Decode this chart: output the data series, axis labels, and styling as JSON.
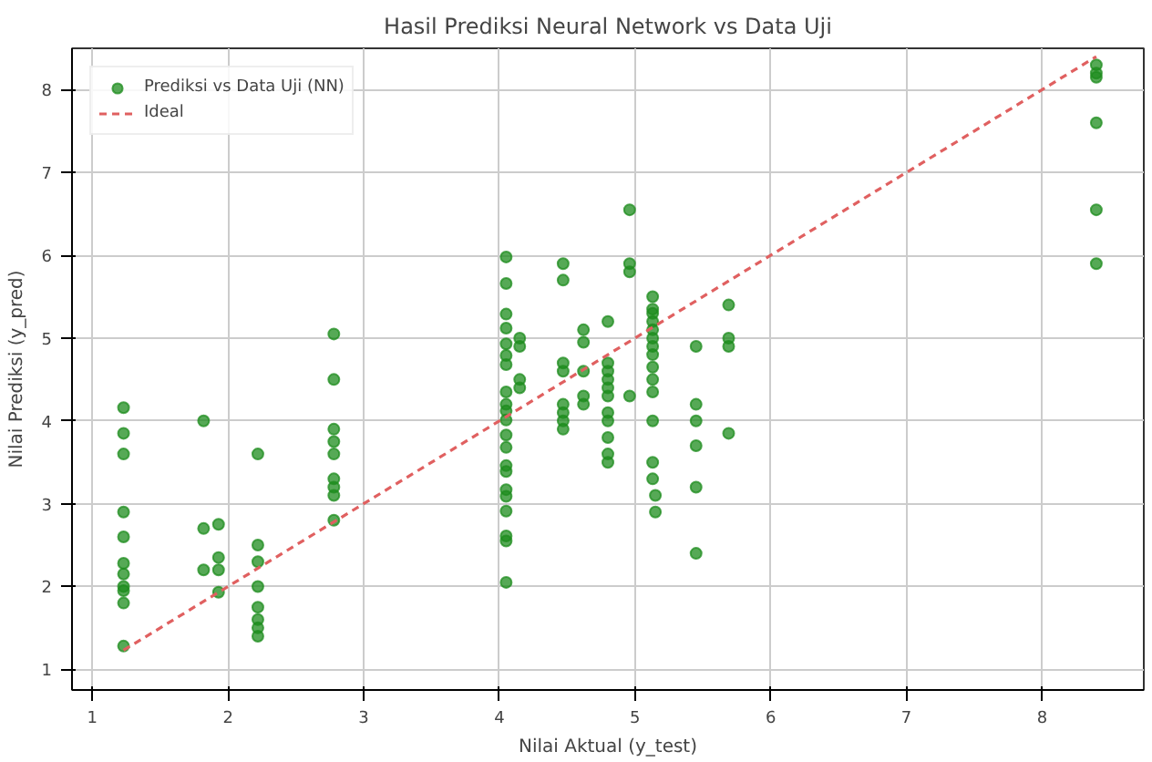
{
  "chart_data": {
    "type": "scatter",
    "title": "Hasil Prediksi Neural Network vs Data Uji",
    "xlabel": "Nilai Aktual (y_test)",
    "ylabel": "Nilai Prediksi (y_pred)",
    "xlim": [
      0.85,
      8.75
    ],
    "ylim": [
      0.75,
      8.5
    ],
    "xticks": [
      1,
      2,
      3,
      4,
      5,
      6,
      7,
      8
    ],
    "yticks": [
      1,
      2,
      3,
      4,
      5,
      6,
      7,
      8
    ],
    "grid": true,
    "legend": "top left",
    "series": [
      {
        "name": "Prediksi vs Data Uji (NN)",
        "color": "#1e8c1e",
        "marker": "circle",
        "x": [
          1.23,
          1.23,
          1.23,
          1.23,
          1.23,
          1.23,
          1.23,
          1.23,
          1.23,
          1.23,
          1.23,
          1.82,
          1.82,
          1.82,
          1.93,
          1.93,
          1.93,
          1.93,
          2.22,
          2.22,
          2.22,
          2.22,
          2.22,
          2.22,
          2.22,
          2.22,
          2.78,
          2.78,
          2.78,
          2.78,
          2.78,
          2.78,
          2.78,
          2.78,
          2.78,
          4.05,
          4.05,
          4.05,
          4.05,
          4.05,
          4.05,
          4.05,
          4.05,
          4.05,
          4.05,
          4.05,
          4.05,
          4.05,
          4.05,
          4.05,
          4.05,
          4.05,
          4.05,
          4.05,
          4.05,
          4.05,
          4.15,
          4.15,
          4.15,
          4.15,
          4.47,
          4.47,
          4.47,
          4.47,
          4.47,
          4.47,
          4.47,
          4.47,
          4.62,
          4.62,
          4.62,
          4.62,
          4.62,
          4.8,
          4.8,
          4.8,
          4.8,
          4.8,
          4.8,
          4.8,
          4.8,
          4.8,
          4.8,
          4.8,
          4.96,
          4.96,
          4.96,
          4.96,
          5.13,
          5.13,
          5.13,
          5.13,
          5.13,
          5.13,
          5.13,
          5.13,
          5.13,
          5.13,
          5.13,
          5.13,
          5.13,
          5.13,
          5.15,
          5.15,
          5.45,
          5.45,
          5.45,
          5.45,
          5.45,
          5.45,
          5.69,
          5.69,
          5.69,
          5.69,
          8.4,
          8.4,
          8.4,
          8.4,
          8.4,
          8.4
        ],
        "values": [
          4.16,
          3.85,
          3.6,
          2.9,
          2.6,
          2.28,
          2.15,
          2.0,
          1.95,
          1.8,
          1.28,
          4.0,
          2.7,
          2.2,
          2.75,
          2.35,
          2.2,
          1.93,
          3.6,
          2.5,
          2.3,
          2.0,
          1.75,
          1.6,
          1.5,
          1.4,
          5.05,
          4.5,
          3.9,
          3.75,
          3.6,
          3.3,
          3.2,
          3.1,
          2.8,
          5.98,
          5.66,
          5.29,
          5.12,
          4.93,
          4.79,
          4.68,
          4.35,
          4.2,
          4.12,
          4.01,
          3.83,
          3.68,
          3.46,
          3.39,
          3.17,
          3.09,
          2.91,
          2.61,
          2.55,
          2.05,
          4.9,
          5.0,
          4.5,
          4.4,
          5.9,
          5.7,
          4.7,
          4.6,
          4.2,
          4.1,
          4.0,
          3.9,
          5.1,
          4.95,
          4.6,
          4.3,
          4.2,
          5.2,
          4.7,
          4.6,
          4.5,
          4.4,
          4.3,
          4.1,
          4.0,
          3.8,
          3.6,
          3.5,
          6.55,
          5.9,
          5.8,
          4.3,
          5.5,
          5.35,
          5.3,
          5.2,
          5.1,
          5.0,
          4.9,
          4.8,
          4.65,
          4.5,
          4.35,
          4.0,
          3.5,
          3.3,
          3.1,
          2.9,
          4.9,
          4.2,
          4.0,
          3.7,
          3.2,
          2.4,
          5.4,
          5.0,
          4.9,
          3.85,
          8.3,
          8.2,
          8.15,
          7.6,
          6.55,
          5.9
        ]
      },
      {
        "name": "Ideal",
        "color": "#e06060",
        "type": "line",
        "line_style": "dashed",
        "marker": "none",
        "x": [
          1.23,
          8.4
        ],
        "values": [
          1.23,
          8.4
        ]
      }
    ]
  }
}
